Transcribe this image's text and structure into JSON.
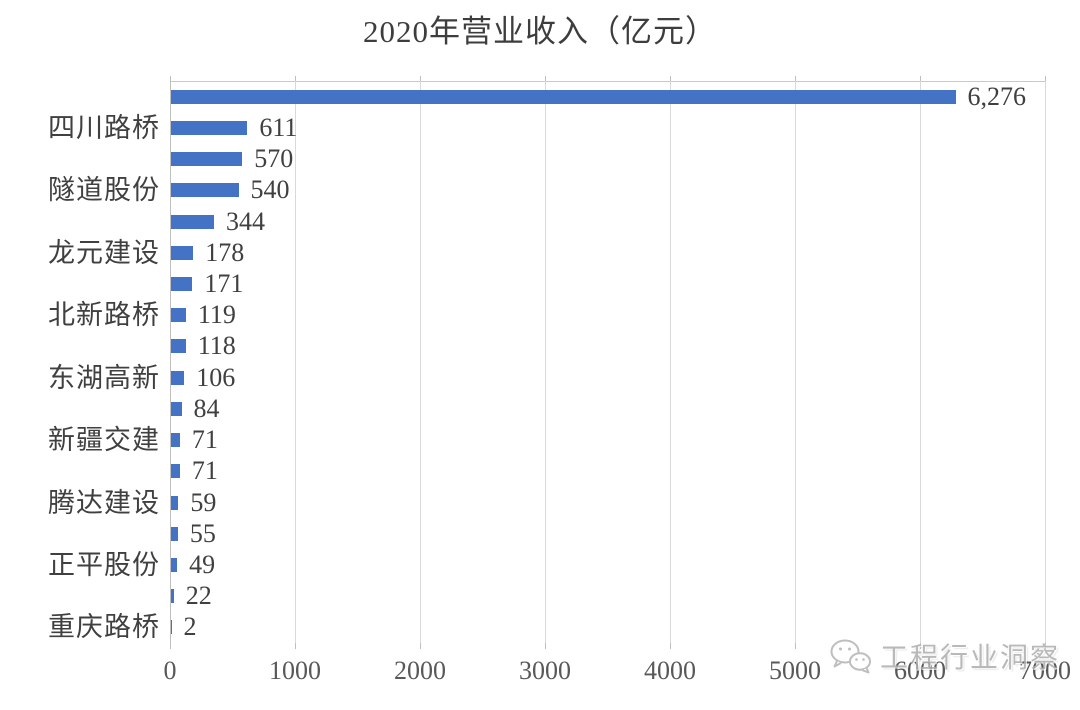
{
  "title": "2020年营业收入（亿元）",
  "watermark": {
    "text": "工程行业洞察",
    "icon": "wechat-icon"
  },
  "colors": {
    "bar": "#4472C4",
    "gridline": "#d9d9d9",
    "axis_line": "#bfbfbf",
    "label_text": "#404040",
    "tick_text": "#595959",
    "watermark_text": "#adadad",
    "background": "#ffffff"
  },
  "chart_data": {
    "type": "bar",
    "orientation": "horizontal",
    "title": "2020年营业收入（亿元）",
    "categories": [
      "",
      "四川路桥",
      "",
      "隧道股份",
      "",
      "龙元建设",
      "",
      "北新路桥",
      "",
      "东湖高新",
      "",
      "新疆交建",
      "",
      "腾达建设",
      "",
      "正平股份",
      "",
      "重庆路桥"
    ],
    "values": [
      6276,
      611,
      570,
      540,
      344,
      178,
      171,
      119,
      118,
      106,
      84,
      71,
      71,
      59,
      55,
      49,
      22,
      2
    ],
    "value_labels": [
      "6,276",
      "611",
      "570",
      "540",
      "344",
      "178",
      "171",
      "119",
      "118",
      "106",
      "84",
      "71",
      "71",
      "59",
      "55",
      "49",
      "22",
      "2"
    ],
    "xlabel": "",
    "ylabel": "",
    "xlim": [
      0,
      7000
    ],
    "x_ticks": [
      0,
      1000,
      2000,
      3000,
      4000,
      5000,
      6000,
      7000
    ],
    "grid": "vertical-gridlines-on",
    "legend": "none",
    "value_labels_position": "outside-end",
    "category_labels_shown": "alternate-rows-only"
  }
}
